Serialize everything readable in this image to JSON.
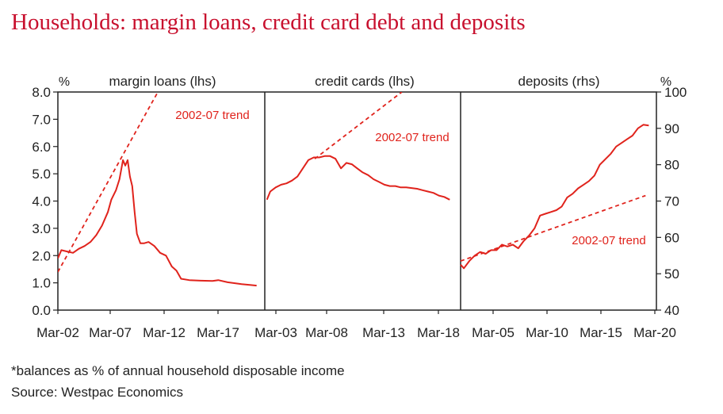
{
  "title": "Households: margin loans, credit card debt and deposits",
  "footnote": "*balances as % of annual household disposable income",
  "source": "Source: Westpac Economics",
  "colors": {
    "title": "#c8102e",
    "line": "#e0231c",
    "axis": "#222222"
  },
  "chart_data": [
    {
      "type": "line",
      "title": "margin loans (lhs)",
      "unit_label": "%",
      "axis_side": "left",
      "ylim": [
        0,
        8
      ],
      "y_ticks": [
        "0.0",
        "1.0",
        "2.0",
        "3.0",
        "4.0",
        "5.0",
        "6.0",
        "7.0",
        "8.0"
      ],
      "x_ticks": [
        "Mar-02",
        "Mar-07",
        "Mar-12",
        "Mar-17"
      ],
      "xlim": [
        2002.2,
        2020.0
      ],
      "series": [
        {
          "values": [
            [
              2002.2,
              1.9
            ],
            [
              2002.5,
              2.2
            ],
            [
              2003.0,
              2.15
            ],
            [
              2003.5,
              2.1
            ],
            [
              2004.0,
              2.25
            ],
            [
              2004.5,
              2.35
            ],
            [
              2005.0,
              2.5
            ],
            [
              2005.5,
              2.75
            ],
            [
              2006.0,
              3.1
            ],
            [
              2006.5,
              3.6
            ],
            [
              2006.8,
              4.05
            ],
            [
              2007.2,
              4.4
            ],
            [
              2007.5,
              4.8
            ],
            [
              2007.8,
              5.5
            ],
            [
              2008.0,
              5.3
            ],
            [
              2008.2,
              5.5
            ],
            [
              2008.4,
              4.9
            ],
            [
              2008.6,
              4.55
            ],
            [
              2008.8,
              3.6
            ],
            [
              2009.0,
              2.8
            ],
            [
              2009.3,
              2.45
            ],
            [
              2009.6,
              2.45
            ],
            [
              2010.0,
              2.5
            ],
            [
              2010.5,
              2.35
            ],
            [
              2011.0,
              2.1
            ],
            [
              2011.5,
              2.0
            ],
            [
              2012.0,
              1.6
            ],
            [
              2012.4,
              1.45
            ],
            [
              2012.8,
              1.15
            ],
            [
              2013.5,
              1.1
            ],
            [
              2014.5,
              1.08
            ],
            [
              2015.5,
              1.07
            ],
            [
              2016.0,
              1.1
            ],
            [
              2016.8,
              1.02
            ],
            [
              2017.5,
              0.98
            ],
            [
              2018.0,
              0.95
            ],
            [
              2018.8,
              0.92
            ],
            [
              2019.3,
              0.9
            ]
          ]
        },
        {
          "values": [
            [
              2002.2,
              1.4
            ],
            [
              2010.8,
              8.0
            ]
          ],
          "style": "dashed"
        }
      ],
      "annotation": "2002-07 trend"
    },
    {
      "type": "line",
      "title": "credit cards (lhs)",
      "axis_side": "left",
      "ylim": [
        0,
        8
      ],
      "x_ticks": [
        "Mar-03",
        "Mar-08",
        "Mar-13",
        "Mar-18"
      ],
      "xlim": [
        2002.0,
        2020.0
      ],
      "series": [
        {
          "values": [
            [
              2002.2,
              4.05
            ],
            [
              2002.5,
              4.35
            ],
            [
              2003.0,
              4.5
            ],
            [
              2003.5,
              4.6
            ],
            [
              2004.0,
              4.65
            ],
            [
              2004.5,
              4.75
            ],
            [
              2005.0,
              4.9
            ],
            [
              2005.5,
              5.2
            ],
            [
              2006.0,
              5.5
            ],
            [
              2006.5,
              5.6
            ],
            [
              2007.0,
              5.6
            ],
            [
              2007.5,
              5.65
            ],
            [
              2008.0,
              5.65
            ],
            [
              2008.5,
              5.55
            ],
            [
              2009.0,
              5.2
            ],
            [
              2009.5,
              5.4
            ],
            [
              2010.0,
              5.35
            ],
            [
              2010.5,
              5.2
            ],
            [
              2011.0,
              5.05
            ],
            [
              2011.5,
              4.95
            ],
            [
              2012.0,
              4.8
            ],
            [
              2012.5,
              4.7
            ],
            [
              2013.0,
              4.6
            ],
            [
              2013.5,
              4.55
            ],
            [
              2014.0,
              4.55
            ],
            [
              2014.5,
              4.5
            ],
            [
              2015.0,
              4.5
            ],
            [
              2016.0,
              4.45
            ],
            [
              2016.5,
              4.4
            ],
            [
              2017.0,
              4.35
            ],
            [
              2017.5,
              4.3
            ],
            [
              2018.0,
              4.2
            ],
            [
              2018.5,
              4.15
            ],
            [
              2019.0,
              4.05
            ]
          ]
        },
        {
          "values": [
            [
              2006.6,
              5.55
            ],
            [
              2014.6,
              8.0
            ]
          ],
          "style": "dashed"
        }
      ],
      "annotation": "2002-07 trend"
    },
    {
      "type": "line",
      "title": "deposits (rhs)",
      "unit_label": "%",
      "axis_side": "right",
      "ylim": [
        40,
        100
      ],
      "y_ticks": [
        "40",
        "50",
        "60",
        "70",
        "80",
        "90",
        "100"
      ],
      "x_ticks": [
        "Mar-05",
        "Mar-10",
        "Mar-15",
        "Mar-20"
      ],
      "xlim": [
        2002.0,
        2020.0
      ],
      "series": [
        {
          "values": [
            [
              2002.0,
              52.5
            ],
            [
              2002.3,
              51.5
            ],
            [
              2002.8,
              53.5
            ],
            [
              2003.3,
              55.0
            ],
            [
              2003.8,
              56.0
            ],
            [
              2004.3,
              55.5
            ],
            [
              2004.8,
              56.5
            ],
            [
              2005.3,
              56.5
            ],
            [
              2005.8,
              58.0
            ],
            [
              2006.3,
              57.5
            ],
            [
              2006.8,
              58.0
            ],
            [
              2007.3,
              57.0
            ],
            [
              2007.8,
              59.0
            ],
            [
              2008.3,
              60.5
            ],
            [
              2008.8,
              62.5
            ],
            [
              2009.3,
              66.0
            ],
            [
              2009.8,
              66.5
            ],
            [
              2010.3,
              67.0
            ],
            [
              2010.8,
              67.5
            ],
            [
              2011.3,
              68.5
            ],
            [
              2011.8,
              71.0
            ],
            [
              2012.3,
              72.0
            ],
            [
              2012.8,
              73.5
            ],
            [
              2013.3,
              74.5
            ],
            [
              2013.8,
              75.5
            ],
            [
              2014.3,
              77.0
            ],
            [
              2014.8,
              80.0
            ],
            [
              2015.3,
              81.5
            ],
            [
              2015.8,
              83.0
            ],
            [
              2016.3,
              85.0
            ],
            [
              2016.8,
              86.0
            ],
            [
              2017.3,
              87.0
            ],
            [
              2017.8,
              88.0
            ],
            [
              2018.3,
              90.0
            ],
            [
              2018.8,
              91.0
            ],
            [
              2019.3,
              90.8
            ]
          ]
        },
        {
          "values": [
            [
              2002.0,
              53.5
            ],
            [
              2019.0,
              71.5
            ]
          ],
          "style": "dashed"
        }
      ],
      "annotation": "2002-07 trend"
    }
  ]
}
